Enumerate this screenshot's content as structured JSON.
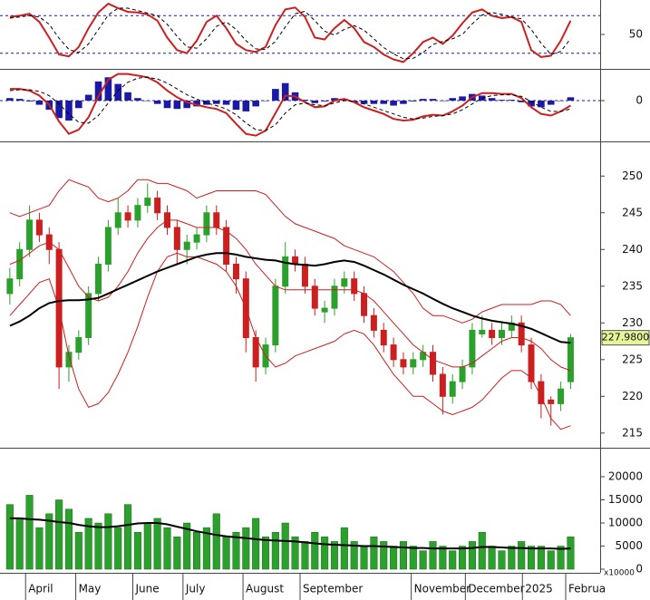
{
  "chart_data": [
    {
      "type": "line",
      "xlim": [
        -1,
        60
      ],
      "ylim": [
        -5,
        105
      ],
      "yticks": [
        50
      ],
      "grid": false,
      "hlines": [
        80,
        20
      ],
      "hline_color": "#1a1aa6",
      "series": [
        {
          "color": "#cc1f1f",
          "dash": false,
          "values": [
            78,
            80,
            83,
            70,
            45,
            18,
            15,
            30,
            60,
            85,
            99,
            92,
            86,
            85,
            82,
            72,
            45,
            25,
            20,
            40,
            70,
            80,
            60,
            35,
            25,
            22,
            30,
            65,
            90,
            93,
            78,
            45,
            42,
            60,
            73,
            60,
            38,
            30,
            18,
            10,
            6,
            20,
            38,
            45,
            35,
            48,
            68,
            85,
            90,
            80,
            76,
            78,
            70,
            25,
            14,
            16,
            40,
            72
          ]
        },
        {
          "color": "#000000",
          "dash": true,
          "values": [
            76,
            78,
            80,
            78,
            66,
            44,
            26,
            21,
            35,
            58,
            81,
            92,
            92,
            88,
            84,
            80,
            66,
            47,
            30,
            28,
            43,
            63,
            70,
            58,
            40,
            27,
            26,
            39,
            62,
            83,
            87,
            72,
            55,
            49,
            58,
            64,
            57,
            43,
            29,
            19,
            11,
            12,
            21,
            34,
            39,
            43,
            50,
            67,
            81,
            85,
            82,
            78,
            75,
            58,
            36,
            18,
            23,
            43
          ]
        }
      ]
    },
    {
      "type": "macd",
      "xlim": [
        -1,
        60
      ],
      "ylim": [
        -4.9,
        3.7
      ],
      "yticks": [
        0
      ],
      "grid": true,
      "grid_color": "#1a1aa6",
      "histogram": {
        "color": "#1a1aa6",
        "values": [
          0.3,
          0.2,
          -0.1,
          -0.5,
          -1.1,
          -2.1,
          -2.4,
          -0.9,
          0.7,
          2.3,
          2.8,
          2.0,
          1.0,
          0.3,
          0.0,
          -0.4,
          -0.9,
          -1.0,
          -0.9,
          -0.7,
          -0.5,
          -0.4,
          -0.5,
          -1.1,
          -1.3,
          -0.7,
          0.0,
          1.4,
          2.1,
          1.0,
          0.1,
          -0.3,
          -0.1,
          0.3,
          0.2,
          -0.1,
          -0.4,
          -0.4,
          -0.4,
          -0.6,
          -0.4,
          -0.1,
          0.2,
          0.2,
          0.0,
          0.3,
          0.5,
          0.8,
          0.6,
          0.3,
          0.1,
          0.1,
          -0.2,
          -0.7,
          -0.8,
          -0.5,
          0.0,
          0.4
        ]
      },
      "series": [
        {
          "color": "#cc1f1f",
          "dash": false,
          "values": [
            1.4,
            1.4,
            1.2,
            0.6,
            -0.5,
            -2.5,
            -4.0,
            -3.5,
            -2.0,
            0.5,
            2.5,
            3.2,
            3.2,
            3.0,
            2.8,
            2.2,
            1.2,
            0.4,
            -0.2,
            -0.5,
            -0.8,
            -1.0,
            -1.5,
            -2.8,
            -4.0,
            -4.2,
            -3.6,
            -1.5,
            0.6,
            0.5,
            -0.2,
            -0.8,
            -0.7,
            0.0,
            0.2,
            -0.2,
            -0.8,
            -1.2,
            -1.6,
            -2.2,
            -2.4,
            -2.3,
            -1.9,
            -1.7,
            -1.8,
            -1.3,
            -0.6,
            0.4,
            0.9,
            0.9,
            0.8,
            0.8,
            0.3,
            -0.8,
            -1.6,
            -1.8,
            -1.3,
            -0.6
          ]
        },
        {
          "color": "#000000",
          "dash": true,
          "values": [
            1.2,
            1.3,
            1.3,
            1.1,
            0.6,
            -0.4,
            -1.6,
            -2.6,
            -2.7,
            -1.8,
            -0.3,
            1.2,
            2.2,
            2.7,
            2.8,
            2.6,
            2.1,
            1.4,
            0.7,
            0.2,
            -0.3,
            -0.6,
            -1.0,
            -1.7,
            -2.7,
            -3.5,
            -3.6,
            -2.9,
            -1.5,
            -0.5,
            -0.3,
            -0.5,
            -0.6,
            -0.3,
            0.0,
            -0.1,
            -0.4,
            -0.8,
            -1.2,
            -1.6,
            -2.0,
            -2.2,
            -2.1,
            -1.9,
            -1.8,
            -1.6,
            -1.1,
            -0.4,
            0.3,
            0.6,
            0.7,
            0.7,
            0.5,
            -0.1,
            -0.8,
            -1.3,
            -1.3,
            -1.0
          ]
        }
      ]
    },
    {
      "type": "candlestick",
      "xlim": [
        -1,
        60
      ],
      "ylim": [
        213.0,
        254.6
      ],
      "yticks": [
        215,
        220,
        225,
        230,
        235,
        240,
        245,
        250
      ],
      "grid": false,
      "up_color": "#2ca02c",
      "down_color": "#cc1f1f",
      "open": [
        234,
        236,
        240,
        244,
        242,
        240,
        224,
        226,
        228,
        234,
        238,
        243,
        245,
        244,
        246,
        247,
        245,
        243,
        240,
        241,
        242,
        245,
        243,
        238,
        236,
        228,
        224,
        227,
        235,
        239,
        238,
        235,
        231.5,
        232,
        235,
        236,
        234,
        231,
        229,
        227,
        225,
        224,
        225,
        226,
        223,
        220,
        222,
        224,
        228.5,
        229,
        228,
        229,
        230,
        227,
        222,
        219.5,
        219,
        222
      ],
      "high": [
        237.5,
        241,
        246,
        245,
        243,
        241,
        227,
        229,
        235,
        239,
        244,
        247,
        246,
        247,
        249,
        248,
        246,
        244,
        242,
        243,
        246,
        246,
        244,
        239,
        237,
        229,
        228,
        236,
        241,
        240,
        239,
        236,
        233,
        236,
        237,
        237,
        235,
        232,
        230,
        228,
        226,
        226,
        227,
        227,
        224,
        223,
        225,
        230,
        231,
        230,
        230,
        231,
        231,
        228,
        223,
        220,
        222,
        228.5
      ],
      "low": [
        232.5,
        235,
        239,
        241,
        238,
        221,
        222,
        225,
        227,
        233,
        237,
        242,
        243,
        243,
        245,
        244,
        242,
        238,
        238,
        240,
        241,
        242,
        237,
        234,
        226,
        222,
        223,
        226,
        234,
        237,
        234,
        231,
        230,
        231,
        234,
        233,
        230,
        228,
        226,
        224,
        223,
        223,
        224,
        222,
        217.5,
        219,
        221,
        223,
        228,
        227,
        227,
        228,
        226,
        221,
        217,
        216,
        218,
        221
      ],
      "close": [
        236,
        240,
        244,
        242,
        240,
        224,
        226,
        228,
        234,
        238,
        243,
        245,
        244,
        246,
        247,
        245,
        243,
        240,
        241,
        242,
        245,
        243,
        238,
        236,
        228,
        224,
        227,
        235,
        239,
        238,
        235,
        232,
        232,
        235,
        236,
        234,
        231,
        229,
        227,
        225,
        224,
        225,
        226,
        223,
        220,
        222,
        224,
        229,
        229,
        228,
        229,
        230,
        227,
        222,
        219,
        219,
        221,
        227.98
      ],
      "last_label": "227.9800",
      "last_label_color": "#e4f59a",
      "series": [
        {
          "color": "#cc1f1f",
          "dash": false,
          "width": 1,
          "values": [
            245,
            244.5,
            245,
            245.5,
            246,
            248,
            249.5,
            249,
            248.5,
            247,
            246.5,
            247,
            248,
            249.5,
            249.5,
            249,
            249,
            248.5,
            248,
            247,
            247.5,
            248,
            248,
            248,
            248,
            248,
            247.5,
            246,
            244.5,
            243.5,
            243,
            242.5,
            242,
            241.5,
            240.5,
            240,
            239.5,
            239,
            238,
            237,
            235.5,
            234,
            232,
            231,
            231,
            230.5,
            230,
            230.5,
            231.5,
            232,
            232.5,
            232.5,
            232.5,
            232.5,
            233,
            233,
            232.5,
            231
          ]
        },
        {
          "color": "#cc1f1f",
          "dash": false,
          "width": 1,
          "values": [
            238,
            238.5,
            239.5,
            240.5,
            241,
            240,
            237.5,
            235,
            233.5,
            233,
            233.5,
            235,
            237,
            239.5,
            241.5,
            243,
            244,
            244,
            243.5,
            243,
            243,
            243,
            242.5,
            241.5,
            240,
            238,
            236.5,
            235,
            234.5,
            234.5,
            234.5,
            234.5,
            234.5,
            234.5,
            234.5,
            234.5,
            234,
            233,
            231.5,
            230,
            228.5,
            227,
            226,
            225,
            224.5,
            224,
            224,
            224.5,
            225.5,
            226.5,
            227.5,
            228,
            228,
            227.5,
            226.5,
            225,
            224,
            223.5
          ]
        },
        {
          "color": "#cc1f1f",
          "dash": false,
          "width": 1,
          "values": [
            231,
            232.5,
            234,
            235.5,
            236,
            232,
            225.5,
            221,
            218.5,
            219,
            220.5,
            223,
            226,
            229.5,
            233.5,
            237,
            239,
            239.5,
            239,
            239,
            238.5,
            238,
            237,
            235,
            232,
            228,
            225.5,
            224,
            224.5,
            225.5,
            226,
            226.5,
            227,
            227.5,
            228.5,
            229,
            228.5,
            227,
            225,
            223,
            221.5,
            220,
            220,
            219,
            218,
            217.5,
            218,
            218.5,
            219.5,
            221,
            222.5,
            223.5,
            223.5,
            222.5,
            220,
            217,
            215.5,
            216
          ]
        },
        {
          "color": "#000000",
          "dash": false,
          "width": 2,
          "values": [
            229.6,
            230.2,
            231,
            232,
            232.7,
            233,
            233.1,
            233.1,
            233.2,
            233.4,
            234,
            234.6,
            235.2,
            235.8,
            236.4,
            237,
            237.5,
            238,
            238.5,
            239,
            239.3,
            239.5,
            239.5,
            239.3,
            239,
            238.8,
            238.6,
            238.5,
            238.2,
            238,
            237.9,
            237.8,
            238,
            238.3,
            238.5,
            238.3,
            237.8,
            237.2,
            236.6,
            235.9,
            235.2,
            234.6,
            234,
            233.3,
            232.6,
            232,
            231.5,
            231,
            230.6,
            230.3,
            230.1,
            229.9,
            229.6,
            229.2,
            228.6,
            228,
            227.4,
            227.3
          ]
        }
      ]
    },
    {
      "type": "bar",
      "xlim": [
        -1,
        60
      ],
      "ylim": [
        -780,
        26080
      ],
      "yticks": [
        0,
        5000,
        10000,
        15000,
        20000
      ],
      "grid": false,
      "color": "#2ca02c",
      "unit_label": "x10000",
      "values": [
        14000,
        11000,
        16000,
        9000,
        12000,
        15000,
        13000,
        8000,
        11000,
        10000,
        12000,
        9000,
        14000,
        8000,
        10000,
        11000,
        9000,
        7000,
        10000,
        8000,
        9000,
        12000,
        7000,
        8000,
        9000,
        11000,
        7000,
        8000,
        10000,
        7000,
        6000,
        8000,
        7000,
        6000,
        9000,
        6000,
        5000,
        7000,
        6000,
        5000,
        6000,
        5000,
        4000,
        6000,
        5000,
        4000,
        5000,
        6000,
        8000,
        5000,
        4000,
        5000,
        6000,
        5000,
        5000,
        4000,
        5000,
        7000
      ],
      "series": [
        {
          "color": "#000000",
          "dash": false,
          "width": 2,
          "values": [
            11000,
            11000,
            10800,
            10700,
            10500,
            10200,
            10000,
            9600,
            9300,
            9100,
            9100,
            9300,
            9600,
            9900,
            10000,
            10000,
            9700,
            9200,
            8700,
            8200,
            7800,
            7400,
            7100,
            6900,
            6700,
            6500,
            6300,
            6200,
            6100,
            6000,
            5800,
            5600,
            5400,
            5300,
            5200,
            5100,
            5000,
            5000,
            4900,
            4800,
            4700,
            4600,
            4600,
            4500,
            4500,
            4500,
            4500,
            4600,
            4800,
            4800,
            4700,
            4600,
            4600,
            4500,
            4500,
            4500,
            4400,
            4500
          ]
        }
      ],
      "xticks": [
        {
          "value": 1.6,
          "label": "April"
        },
        {
          "value": 6.7,
          "label": "May"
        },
        {
          "value": 12.5,
          "label": "June"
        },
        {
          "value": 17.6,
          "label": "July"
        },
        {
          "value": 23.7,
          "label": "August"
        },
        {
          "value": 29.5,
          "label": "September"
        },
        {
          "value": 40.8,
          "label": "November"
        },
        {
          "value": 46.3,
          "label": "December"
        },
        {
          "value": 52.1,
          "label": "2025"
        },
        {
          "value": 56.5,
          "label": "Februa"
        }
      ]
    }
  ]
}
